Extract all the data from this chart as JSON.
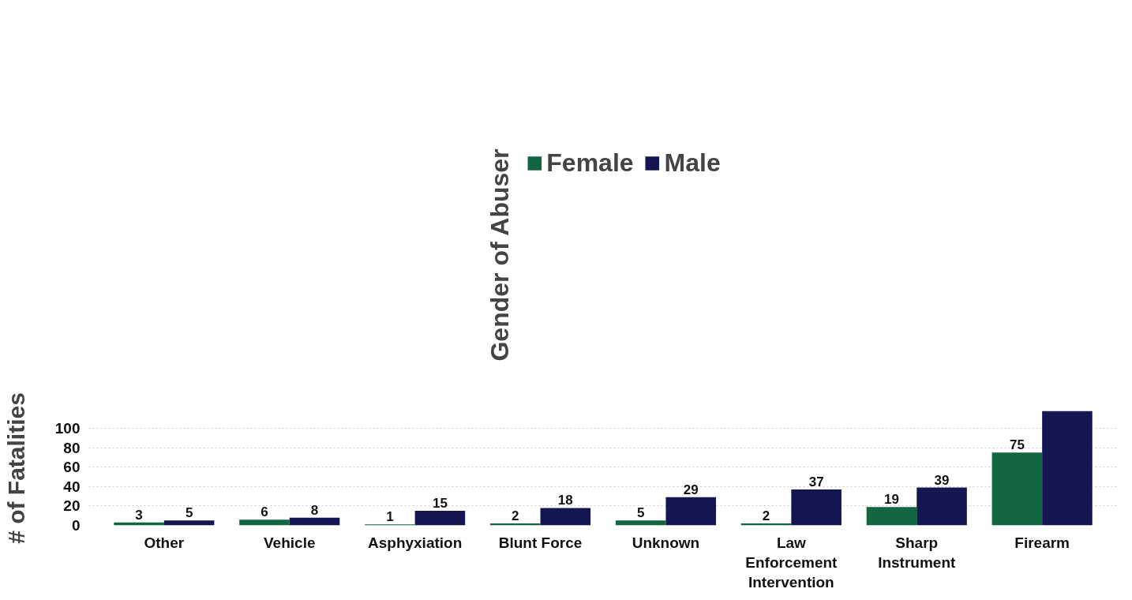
{
  "chart_data": {
    "type": "bar",
    "legend_title": "Gender of Abuser",
    "ylabel": "# of Fatalities",
    "categories": [
      "Other",
      "Vehicle",
      "Asphyxiation",
      "Blunt Force",
      "Unknown",
      "Law Enforcement Intervention",
      "Sharp Instrument",
      "Firearm"
    ],
    "series": [
      {
        "name": "Female",
        "color": "#126641",
        "values": [
          3,
          6,
          1,
          2,
          5,
          2,
          19,
          75
        ],
        "value_labels": [
          "3",
          "6",
          "1",
          "2",
          "5",
          "2",
          "19",
          "75"
        ]
      },
      {
        "name": "Male",
        "color": "#131650",
        "values": [
          5,
          8,
          15,
          18,
          29,
          37,
          39,
          118
        ],
        "value_labels": [
          "5",
          "8",
          "15",
          "18",
          "29",
          "37",
          "39",
          null
        ]
      }
    ],
    "ylim": [
      0,
      118
    ],
    "yticks": [
      0,
      20,
      40,
      60,
      80,
      100
    ],
    "grid": "y",
    "legend": "top"
  }
}
